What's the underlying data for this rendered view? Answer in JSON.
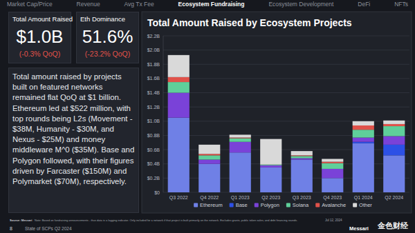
{
  "page": {
    "nav": [
      {
        "label": "Market Cap/Price"
      },
      {
        "label": "Revenue"
      },
      {
        "label": "Avg Tx Fee"
      },
      {
        "label": "Ecosystem Fundraising",
        "active": true
      },
      {
        "label": "Ecosystem Development"
      },
      {
        "label": "DeFi"
      },
      {
        "label": "NFTs"
      }
    ],
    "kpis": [
      {
        "label": "Total Amount Raised",
        "value": "$1.0B",
        "change": "(-0.3% QoQ)"
      },
      {
        "label": "Eth Dominance",
        "value": "51.6%",
        "change": "(-23.2% QoQ)"
      }
    ],
    "description": "Total amount raised by projects built on featured networks remained flat QoQ at $1 billion. Ethereum led at $522 million, with top rounds being L2s (Movement - $38M, Humanity - $30M, and Nexus - $25M) and money middleware M^0 ($35M). Base and Polygon followed, with their figures driven by Farcaster ($150M) and Polymarket ($70M), respectively.",
    "source": "Source: Messari",
    "note": "Note: Based on fundraising announcements - thus data is a lagging indicator. Only included for a network if that project is built primarily on the network. Excludes grants, public token sales, and debt financing rounds.",
    "page_number": "8",
    "report": "State of SCPs Q2 2024",
    "date": "Jul 12, 2024",
    "brand": "Messari",
    "watermark": "金色财经"
  },
  "chart_data": {
    "type": "bar",
    "stacked": true,
    "title": "Total Amount Raised by Ecosystem Projects",
    "categories": [
      "Q3 2022",
      "Q4 2022",
      "Q1 2023",
      "Q2 2023",
      "Q3 2023",
      "Q4 2023",
      "Q1 2024",
      "Q2 2024"
    ],
    "series": [
      {
        "name": "Ethereum",
        "color": "#6f80e6",
        "values": [
          1.05,
          0.4,
          0.56,
          0.35,
          0.46,
          0.2,
          0.69,
          0.52
        ]
      },
      {
        "name": "Base",
        "color": "#2d50e6",
        "values": [
          0,
          0,
          0,
          0,
          0,
          0,
          0.02,
          0.15
        ]
      },
      {
        "name": "Polygon",
        "color": "#7a42d8",
        "values": [
          0.35,
          0.06,
          0.15,
          0.03,
          0.02,
          0.13,
          0.06,
          0.12
        ]
      },
      {
        "name": "Solana",
        "color": "#5fcf9a",
        "values": [
          0.15,
          0.06,
          0.05,
          0.01,
          0.03,
          0.08,
          0.11,
          0.14
        ]
      },
      {
        "name": "Avalanche",
        "color": "#e0524a",
        "values": [
          0.07,
          0.02,
          0.01,
          0,
          0.01,
          0.02,
          0.06,
          0.03
        ]
      },
      {
        "name": "Other",
        "color": "#d9d9d9",
        "values": [
          0.31,
          0.13,
          0.04,
          0.36,
          0.06,
          0.04,
          0.06,
          0.05
        ]
      }
    ],
    "ylim": [
      0,
      2.2
    ],
    "yticks": [
      {
        "value": 0,
        "label": "$0"
      },
      {
        "value": 0.2,
        "label": "$0.2B"
      },
      {
        "value": 0.4,
        "label": "$0.4B"
      },
      {
        "value": 0.6,
        "label": "$0.6B"
      },
      {
        "value": 0.8,
        "label": "$0.8B"
      },
      {
        "value": 1.0,
        "label": "$1.0B"
      },
      {
        "value": 1.2,
        "label": "$1.2B"
      },
      {
        "value": 1.4,
        "label": "$1.4B"
      },
      {
        "value": 1.6,
        "label": "$1.6B"
      },
      {
        "value": 1.8,
        "label": "$1.8B"
      },
      {
        "value": 2.0,
        "label": "$2.0B"
      },
      {
        "value": 2.2,
        "label": "$2.2B"
      }
    ],
    "grid": true,
    "legend": "bottom"
  }
}
